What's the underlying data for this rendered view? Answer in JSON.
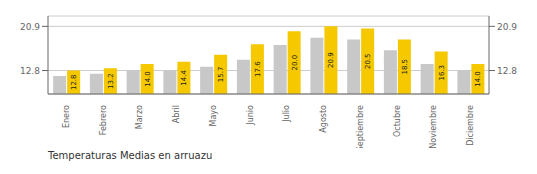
{
  "chart_data": {
    "type": "bar",
    "title": "Temperaturas Medias en arruazu",
    "categories": [
      "Enero",
      "Febrero",
      "Marzo",
      "Abril",
      "Mayo",
      "Junio",
      "Julio",
      "Agosto",
      "Septiembre",
      "Octubre",
      "Noviembre",
      "Diciembre"
    ],
    "series": [
      {
        "color": "#C8C8C8",
        "values": [
          11.8,
          12.2,
          12.8,
          12.8,
          13.5,
          14.8,
          17.5,
          18.8,
          18.5,
          16.5,
          14.0,
          12.8
        ]
      },
      {
        "color": "#F5C800",
        "values": [
          12.8,
          13.2,
          14.0,
          14.4,
          15.7,
          17.6,
          20.0,
          20.9,
          20.5,
          18.5,
          16.3,
          14.0
        ],
        "data_labels": true,
        "value_labels": [
          "12.8",
          "13.2",
          "14.0",
          "14.4",
          "15.7",
          "17.6",
          "20.0",
          "20.9",
          "20.5",
          "18.5",
          "16.3",
          "14.0"
        ]
      }
    ],
    "ylim": [
      8.5,
      22.8
    ],
    "yticks": [
      12.8,
      20.9
    ],
    "y2lim": [
      8.5,
      22.8
    ],
    "y2ticks": [
      12.8,
      20.9
    ],
    "grid": true
  }
}
